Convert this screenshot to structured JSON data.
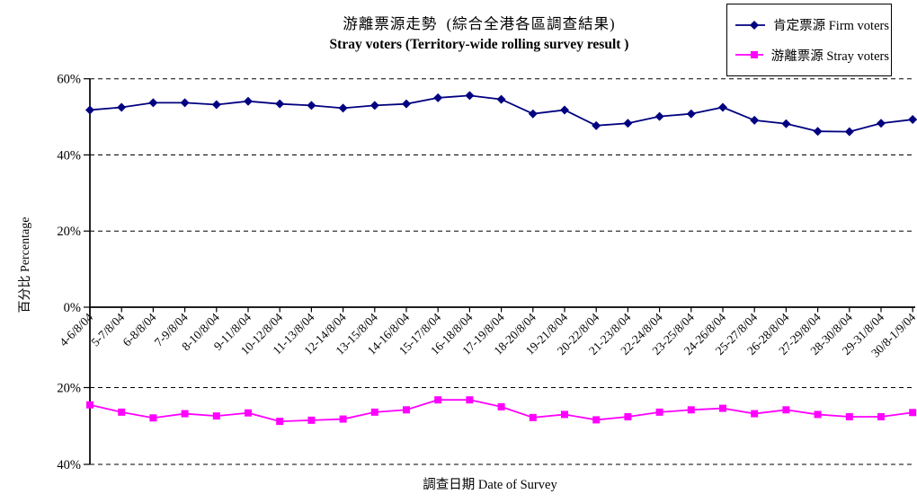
{
  "chart_data": {
    "type": "line",
    "title": "游離票源走勢  (綜合全港各區調查結果)",
    "subtitle": "Stray voters (Territory-wide rolling survey result )",
    "xlabel": "調查日期 Date of Survey",
    "ylabel": "百分比 Percentage",
    "legend_position": "top-right",
    "grid": "dashed-horizontal",
    "background_color": "#FFFFFF",
    "y_axis": {
      "upper_section_ticks": [
        "60%",
        "40%",
        "20%",
        "0%"
      ],
      "upper_range_pct": [
        0,
        60
      ],
      "lower_section_ticks": [
        "20%",
        "40%"
      ],
      "lower_range_pct": [
        0,
        40
      ],
      "lower_section_direction": "values increase downward below the 0% axis (mirrored axis)"
    },
    "categories": [
      "4-6/8/04",
      "5-7/8/04",
      "6-8/8/04",
      "7-9/8/04",
      "8-10/8/04",
      "9-11/8/04",
      "10-12/8/04",
      "11-13/8/04",
      "12-14/8/04",
      "13-15/8/04",
      "14-16/8/04",
      "15-17/8/04",
      "16-18/8/04",
      "17-19/8/04",
      "18-20/8/04",
      "19-21/8/04",
      "20-22/8/04",
      "21-23/8/04",
      "22-24/8/04",
      "23-25/8/04",
      "24-26/8/04",
      "25-27/8/04",
      "26-28/8/04",
      "27-29/8/04",
      "28-30/8/04",
      "29-31/8/04",
      "30/8-1/9/04"
    ],
    "series": [
      {
        "name": "肯定票源 Firm voters",
        "color": "#000080",
        "marker": "diamond",
        "plot_section": "upper",
        "values": [
          51.8,
          52.5,
          53.7,
          53.7,
          53.2,
          54.1,
          53.4,
          53.0,
          52.3,
          53.0,
          53.4,
          55.0,
          55.6,
          54.6,
          50.8,
          51.8,
          47.7,
          48.3,
          50.1,
          50.8,
          52.5,
          49.1,
          48.2,
          46.2,
          46.1,
          48.3,
          49.3
        ]
      },
      {
        "name": "游離票源 Stray voters",
        "color": "#FF00FF",
        "marker": "square",
        "plot_section": "lower-inverted",
        "values": [
          24.5,
          26.4,
          27.9,
          26.8,
          27.4,
          26.6,
          28.8,
          28.5,
          28.2,
          26.4,
          25.8,
          23.2,
          23.2,
          25.0,
          27.8,
          27.0,
          28.4,
          27.6,
          26.4,
          25.8,
          25.4,
          26.8,
          25.8,
          27.0,
          27.6,
          27.6,
          26.5
        ]
      }
    ]
  }
}
